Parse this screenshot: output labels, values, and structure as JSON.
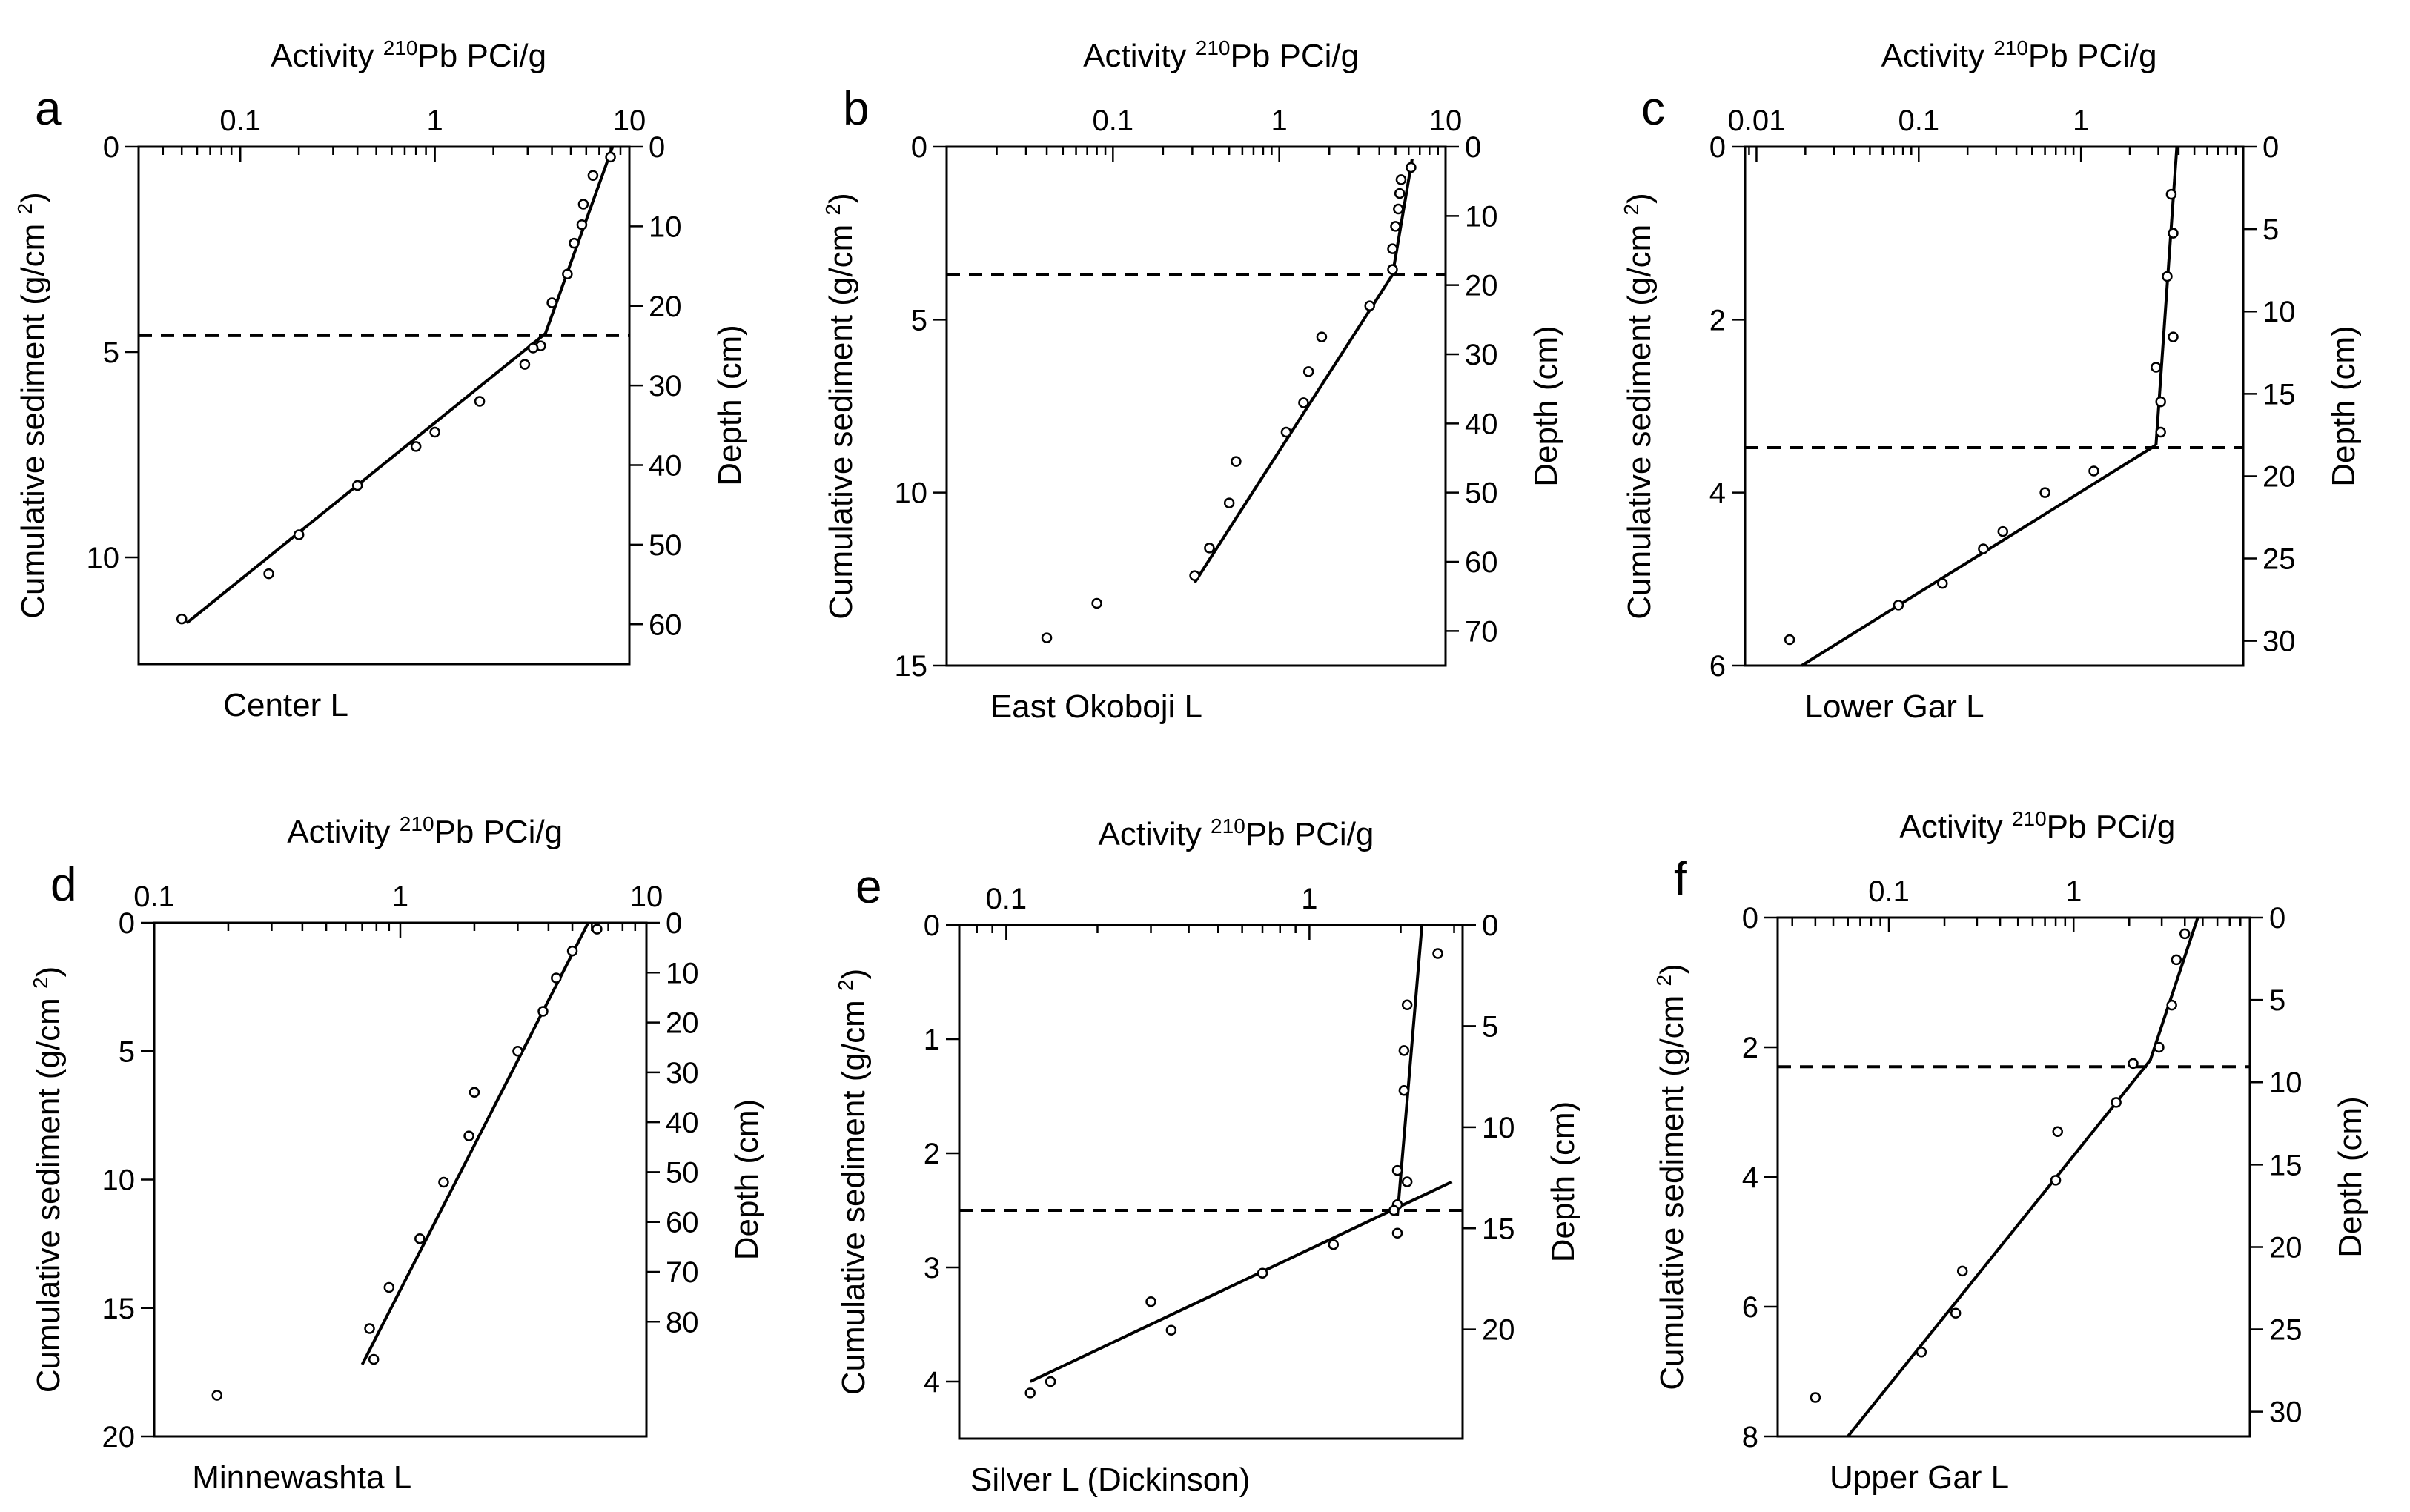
{
  "chart_data": [
    {
      "panel": "a",
      "type": "scatter",
      "lake": "Center L",
      "top_title": "Activity",
      "top_title_sup": "210",
      "top_title_rest": "Pb PCi/g",
      "left_label": "Cumulative sediment (g/cm",
      "left_label_sup": "2",
      "left_label_end": ")",
      "right_label": "Depth (cm)",
      "xlim": [
        0.03,
        10
      ],
      "x_scale": "log",
      "x_ticks": [
        "0.1",
        "1",
        "10"
      ],
      "x_tick_values": [
        0.1,
        1,
        10
      ],
      "ylim": [
        0,
        12.6
      ],
      "y_ticks": [
        "0",
        "5",
        "10"
      ],
      "y_tick_values": [
        0,
        5,
        10
      ],
      "right_ticks": [
        "0",
        "10",
        "20",
        "30",
        "40",
        "50",
        "60"
      ],
      "right_tick_values": [
        0,
        10,
        20,
        30,
        40,
        50,
        60
      ],
      "depth_max": 65,
      "points": [
        [
          8.0,
          0.25
        ],
        [
          6.5,
          0.7
        ],
        [
          5.8,
          1.4
        ],
        [
          5.7,
          1.9
        ],
        [
          5.2,
          2.35
        ],
        [
          4.8,
          3.1
        ],
        [
          4.0,
          3.8
        ],
        [
          3.5,
          4.85
        ],
        [
          3.2,
          4.9
        ],
        [
          2.9,
          5.3
        ],
        [
          1.7,
          6.2
        ],
        [
          1.0,
          6.95
        ],
        [
          0.8,
          7.3
        ],
        [
          0.4,
          8.25
        ],
        [
          0.2,
          9.45
        ],
        [
          0.14,
          10.4
        ],
        [
          0.05,
          11.5
        ]
      ],
      "fit_lines": [
        [
          [
            8.2,
            0.0
          ],
          [
            3.7,
            4.55
          ]
        ],
        [
          [
            3.7,
            4.55
          ],
          [
            0.053,
            11.6
          ]
        ]
      ],
      "dashed_y": 4.6
    },
    {
      "panel": "b",
      "type": "scatter",
      "lake": "East Okoboji L",
      "top_title": "Activity",
      "top_title_sup": "210",
      "top_title_rest": "Pb PCi/g",
      "left_label": "Cumulative sediment (g/cm",
      "left_label_sup": "2",
      "left_label_end": ")",
      "right_label": "Depth (cm)",
      "xlim": [
        0.01,
        10
      ],
      "x_scale": "log",
      "x_ticks": [
        "0.1",
        "1",
        "10"
      ],
      "x_tick_values": [
        0.1,
        1,
        10
      ],
      "ylim": [
        0,
        15
      ],
      "y_ticks": [
        "0",
        "5",
        "10",
        "15"
      ],
      "y_tick_values": [
        0,
        5,
        10,
        15
      ],
      "right_ticks": [
        "0",
        "10",
        "20",
        "30",
        "40",
        "50",
        "60",
        "70"
      ],
      "right_tick_values": [
        0,
        10,
        20,
        30,
        40,
        50,
        60,
        70
      ],
      "depth_max": 75,
      "points": [
        [
          6.2,
          0.6
        ],
        [
          5.4,
          0.95
        ],
        [
          5.3,
          1.35
        ],
        [
          5.2,
          1.8
        ],
        [
          5.0,
          2.3
        ],
        [
          4.8,
          2.95
        ],
        [
          4.8,
          3.55
        ],
        [
          3.5,
          4.6
        ],
        [
          1.8,
          5.5
        ],
        [
          1.5,
          6.5
        ],
        [
          1.4,
          7.4
        ],
        [
          1.1,
          8.25
        ],
        [
          0.55,
          9.1
        ],
        [
          0.5,
          10.3
        ],
        [
          0.38,
          11.6
        ],
        [
          0.31,
          12.4
        ],
        [
          0.08,
          13.2
        ],
        [
          0.04,
          14.2
        ]
      ],
      "fit_lines": [
        [
          [
            6.3,
            0.35
          ],
          [
            4.8,
            3.7
          ]
        ],
        [
          [
            4.8,
            3.7
          ],
          [
            0.31,
            12.6
          ]
        ]
      ],
      "dashed_y": 3.7
    },
    {
      "panel": "c",
      "type": "scatter",
      "lake": "Lower Gar L",
      "top_title": "Activity",
      "top_title_sup": "210",
      "top_title_rest": "Pb PCi/g",
      "left_label": "Cumulative sediment (g/cm",
      "left_label_sup": "2",
      "left_label_end": ")",
      "right_label": "Depth (cm)",
      "xlim": [
        0.0085,
        10
      ],
      "x_scale": "log",
      "x_ticks": [
        "0.01",
        "0.1",
        "1"
      ],
      "x_tick_values": [
        0.01,
        0.1,
        1
      ],
      "ylim": [
        0,
        6
      ],
      "y_ticks": [
        "0",
        "2",
        "4",
        "6"
      ],
      "y_tick_values": [
        0,
        2,
        4,
        6
      ],
      "right_ticks": [
        "0",
        "5",
        "10",
        "15",
        "20",
        "25",
        "30"
      ],
      "right_tick_values": [
        0,
        5,
        10,
        15,
        20,
        25,
        30
      ],
      "depth_max": 31.5,
      "points": [
        [
          3.6,
          0.55
        ],
        [
          3.7,
          1.0
        ],
        [
          3.4,
          1.5
        ],
        [
          3.7,
          2.2
        ],
        [
          2.9,
          2.55
        ],
        [
          3.1,
          2.95
        ],
        [
          3.1,
          3.3
        ],
        [
          1.2,
          3.75
        ],
        [
          0.6,
          4.0
        ],
        [
          0.33,
          4.45
        ],
        [
          0.25,
          4.65
        ],
        [
          0.14,
          5.05
        ],
        [
          0.075,
          5.3
        ],
        [
          0.016,
          5.7
        ]
      ],
      "fit_lines": [
        [
          [
            3.9,
            0.0
          ],
          [
            2.9,
            3.45
          ]
        ],
        [
          [
            2.9,
            3.45
          ],
          [
            0.019,
            6.0
          ]
        ]
      ],
      "dashed_y": 3.48
    },
    {
      "panel": "d",
      "type": "scatter",
      "lake": "Minnewashta L",
      "top_title": "Activity",
      "top_title_sup": "210",
      "top_title_rest": "Pb PCi/g",
      "left_label": "Cumulative sediment (g/cm",
      "left_label_sup": "2",
      "left_label_end": ")",
      "right_label": "Depth (cm)",
      "xlim": [
        0.1,
        10
      ],
      "x_scale": "log",
      "x_ticks": [
        "0.1",
        "1",
        "10"
      ],
      "x_tick_values": [
        0.1,
        1,
        10
      ],
      "ylim": [
        0,
        20
      ],
      "y_ticks": [
        "0",
        "5",
        "10",
        "15",
        "20"
      ],
      "y_tick_values": [
        0,
        5,
        10,
        15,
        20
      ],
      "right_ticks": [
        "0",
        "10",
        "20",
        "30",
        "40",
        "50",
        "60",
        "70",
        "80"
      ],
      "right_tick_values": [
        0,
        10,
        20,
        30,
        40,
        50,
        60,
        70,
        80
      ],
      "depth_max": 103,
      "points": [
        [
          6.3,
          0.25
        ],
        [
          5.0,
          1.1
        ],
        [
          4.3,
          2.15
        ],
        [
          3.8,
          3.45
        ],
        [
          3.0,
          5.0
        ],
        [
          2.0,
          6.6
        ],
        [
          1.9,
          8.3
        ],
        [
          1.5,
          10.1
        ],
        [
          1.2,
          12.3
        ],
        [
          0.9,
          14.2
        ],
        [
          0.75,
          15.8
        ],
        [
          0.78,
          17.0
        ],
        [
          0.18,
          18.4
        ]
      ],
      "fit_lines": [
        [
          [
            5.8,
            0.0
          ],
          [
            0.7,
            17.2
          ]
        ]
      ],
      "dashed_y": null
    },
    {
      "panel": "e",
      "type": "scatter",
      "lake": "Silver L (Dickinson)",
      "top_title": "Activity",
      "top_title_sup": "210",
      "top_title_rest": "Pb PCi/g",
      "left_label": "Cumulative sediment (g/cm",
      "left_label_sup": "2",
      "left_label_end": ")",
      "right_label": "Depth (cm)",
      "xlim": [
        0.07,
        3.2
      ],
      "x_scale": "log",
      "x_ticks": [
        "0.1",
        "1"
      ],
      "x_tick_values": [
        0.1,
        1
      ],
      "ylim": [
        0,
        4.5
      ],
      "y_ticks": [
        "0",
        "1",
        "2",
        "3",
        "4"
      ],
      "y_tick_values": [
        0,
        1,
        2,
        3,
        4
      ],
      "right_ticks": [
        "0",
        "5",
        "10",
        "15",
        "20"
      ],
      "right_tick_values": [
        0,
        5,
        10,
        15,
        20
      ],
      "depth_max": 25.4,
      "points": [
        [
          2.65,
          0.25
        ],
        [
          2.1,
          0.7
        ],
        [
          2.05,
          1.1
        ],
        [
          2.05,
          1.45
        ],
        [
          1.95,
          2.15
        ],
        [
          2.1,
          2.25
        ],
        [
          1.95,
          2.45
        ],
        [
          1.9,
          2.5
        ],
        [
          1.95,
          2.7
        ],
        [
          1.2,
          2.8
        ],
        [
          0.7,
          3.05
        ],
        [
          0.3,
          3.3
        ],
        [
          0.35,
          3.55
        ],
        [
          0.14,
          4.0
        ],
        [
          0.12,
          4.1
        ]
      ],
      "fit_lines": [
        [
          [
            2.35,
            0.0
          ],
          [
            1.95,
            2.55
          ]
        ],
        [
          [
            2.95,
            2.25
          ],
          [
            0.12,
            4.0
          ]
        ]
      ],
      "dashed_y": 2.5
    },
    {
      "panel": "f",
      "type": "scatter",
      "lake": "Upper Gar L",
      "top_title": "Activity",
      "top_title_sup": "210",
      "top_title_rest": "Pb PCi/g",
      "left_label": "Cumulative sediment (g/cm",
      "left_label_sup": "2",
      "left_label_end": ")",
      "right_label": "Depth (cm)",
      "xlim": [
        0.025,
        9
      ],
      "x_scale": "log",
      "x_ticks": [
        "0.1",
        "1"
      ],
      "x_tick_values": [
        0.1,
        1
      ],
      "ylim": [
        0,
        8
      ],
      "y_ticks": [
        "0",
        "2",
        "4",
        "6",
        "8"
      ],
      "y_tick_values": [
        0,
        2,
        4,
        6,
        8
      ],
      "right_ticks": [
        "0",
        "5",
        "10",
        "15",
        "20",
        "25",
        "30"
      ],
      "right_tick_values": [
        0,
        5,
        10,
        15,
        20,
        25,
        30
      ],
      "depth_max": 31.5,
      "points": [
        [
          4.0,
          0.25
        ],
        [
          3.6,
          0.65
        ],
        [
          3.4,
          1.35
        ],
        [
          2.9,
          2.0
        ],
        [
          2.1,
          2.25
        ],
        [
          1.7,
          2.85
        ],
        [
          0.82,
          3.3
        ],
        [
          0.8,
          4.05
        ],
        [
          0.25,
          5.45
        ],
        [
          0.23,
          6.1
        ],
        [
          0.15,
          6.7
        ],
        [
          0.04,
          7.4
        ]
      ],
      "fit_lines": [
        [
          [
            4.7,
            0.0
          ],
          [
            2.6,
            2.2
          ]
        ],
        [
          [
            2.6,
            2.2
          ],
          [
            0.06,
            8.0
          ]
        ]
      ],
      "dashed_y": 2.3
    }
  ]
}
